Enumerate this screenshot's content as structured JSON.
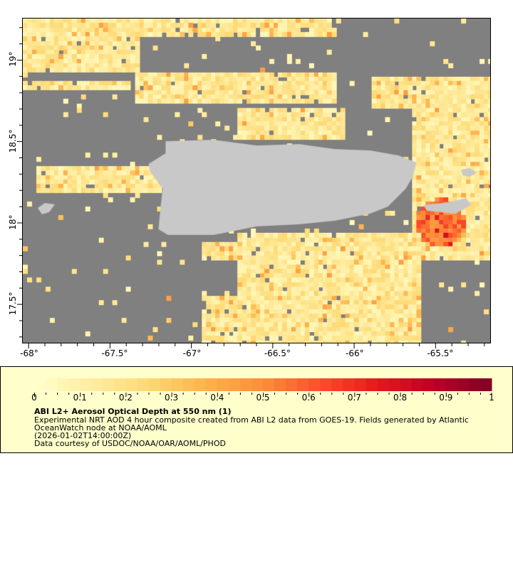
{
  "map": {
    "lon_range": [
      -68.04,
      -65.16
    ],
    "lat_range": [
      17.26,
      19.26
    ],
    "x_ticks": [
      "-68°",
      "-67.5°",
      "-67°",
      "-66.5°",
      "-66°",
      "-65.5°"
    ],
    "x_tick_values": [
      -68,
      -67.5,
      -67,
      -66.5,
      -66,
      -65.5
    ],
    "y_ticks": [
      "19°",
      "18.5°",
      "18°",
      "17.5°"
    ],
    "y_tick_values": [
      19,
      18.5,
      18,
      17.5
    ],
    "no_data_color": "#808080",
    "land_color": "#c8c8c8"
  },
  "legend": {
    "colorbar_ticks": [
      "0",
      "0.1",
      "0.2",
      "0.3",
      "0.4",
      "0.5",
      "0.6",
      "0.7",
      "0.8",
      "0.9",
      "1"
    ],
    "range": [
      0,
      1
    ],
    "colors": [
      "#ffffcc",
      "#ffeda0",
      "#fed976",
      "#feb24c",
      "#fd8d3c",
      "#fc4e2a",
      "#e31a1c",
      "#bd0026",
      "#800026"
    ],
    "title": "ABI L2+ Aerosol Optical Depth at 550 nm (1)",
    "line1": "Experimental NRT AOD 4 hour composite created from ABI L2 data from GOES-19. Fields generated by Atlantic",
    "line2": "OceanWatch node at NOAA/AOML",
    "line3": "(2026-01-02T14:00:00Z)",
    "line4": "Data courtesy of USDOC/NOAA/OAR/AOML/PHOD"
  }
}
